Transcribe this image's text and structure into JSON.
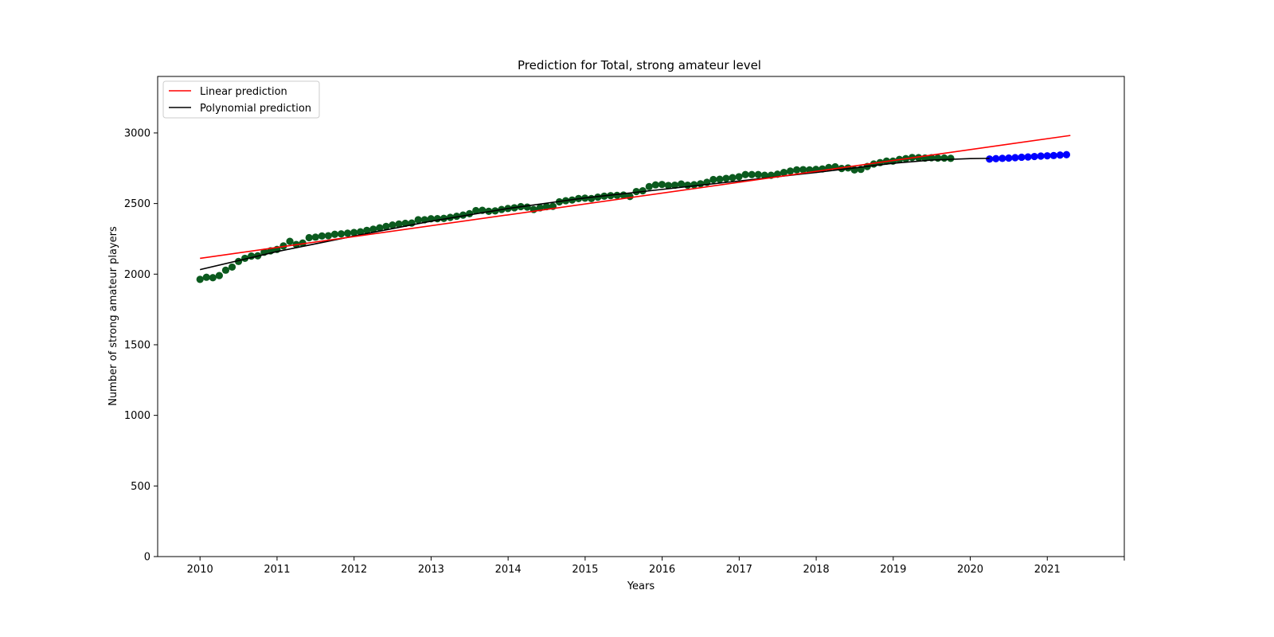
{
  "chart_data": {
    "type": "scatter",
    "title": "Prediction for Total, strong amateur level",
    "xlabel": "Years",
    "ylabel": "Number of strong amateur players",
    "xlim": [
      2009.45,
      2022.0
    ],
    "ylim": [
      0,
      3400
    ],
    "x_ticks": [
      2010,
      2011,
      2012,
      2013,
      2014,
      2015,
      2016,
      2017,
      2018,
      2019,
      2020,
      2021
    ],
    "y_ticks": [
      0,
      500,
      1000,
      1500,
      2000,
      2500,
      3000
    ],
    "legend": {
      "position": "top-left",
      "entries": [
        {
          "label": "Linear prediction",
          "color": "#ff0000"
        },
        {
          "label": "Polynomial prediction",
          "color": "#000000"
        }
      ]
    },
    "colors": {
      "observed": "#0b5a1e",
      "predicted": "#0000ff",
      "linear": "#ff0000",
      "polynomial": "#000000"
    },
    "observed": {
      "x_start": 2010.0,
      "step": 0.0833,
      "values": [
        1963,
        1978,
        1975,
        1990,
        2028,
        2050,
        2090,
        2112,
        2128,
        2130,
        2155,
        2165,
        2175,
        2200,
        2232,
        2210,
        2220,
        2258,
        2262,
        2270,
        2272,
        2282,
        2285,
        2290,
        2295,
        2300,
        2310,
        2318,
        2328,
        2338,
        2348,
        2355,
        2360,
        2362,
        2385,
        2385,
        2392,
        2393,
        2395,
        2402,
        2410,
        2418,
        2428,
        2450,
        2452,
        2445,
        2448,
        2458,
        2465,
        2470,
        2478,
        2475,
        2458,
        2470,
        2478,
        2480,
        2512,
        2520,
        2525,
        2535,
        2538,
        2535,
        2545,
        2552,
        2556,
        2558,
        2560,
        2550,
        2585,
        2590,
        2620,
        2632,
        2635,
        2628,
        2630,
        2638,
        2630,
        2633,
        2640,
        2650,
        2670,
        2672,
        2678,
        2683,
        2690,
        2705,
        2705,
        2705,
        2700,
        2700,
        2708,
        2720,
        2730,
        2738,
        2740,
        2738,
        2742,
        2745,
        2755,
        2760,
        2748,
        2752,
        2738,
        2742,
        2762,
        2780,
        2790,
        2800,
        2800,
        2812,
        2818,
        2826,
        2825,
        2822,
        2824,
        2822,
        2822,
        2820
      ]
    },
    "predicted": {
      "x_start": 2020.25,
      "step": 0.0833,
      "values": [
        2815,
        2818,
        2820,
        2822,
        2825,
        2828,
        2830,
        2833,
        2836,
        2838,
        2840,
        2843,
        2846
      ]
    },
    "linear_fit": {
      "x": [
        2010.0,
        2021.3
      ],
      "y": [
        2112,
        2982
      ]
    },
    "polynomial_fit": {
      "x": [
        2010.0,
        2011.0,
        2012.0,
        2013.0,
        2014.0,
        2015.0,
        2016.0,
        2017.0,
        2018.0,
        2019.0,
        2019.5,
        2020.0,
        2020.25
      ],
      "y": [
        2032,
        2160,
        2270,
        2375,
        2465,
        2540,
        2600,
        2660,
        2720,
        2785,
        2808,
        2818,
        2820
      ]
    }
  }
}
